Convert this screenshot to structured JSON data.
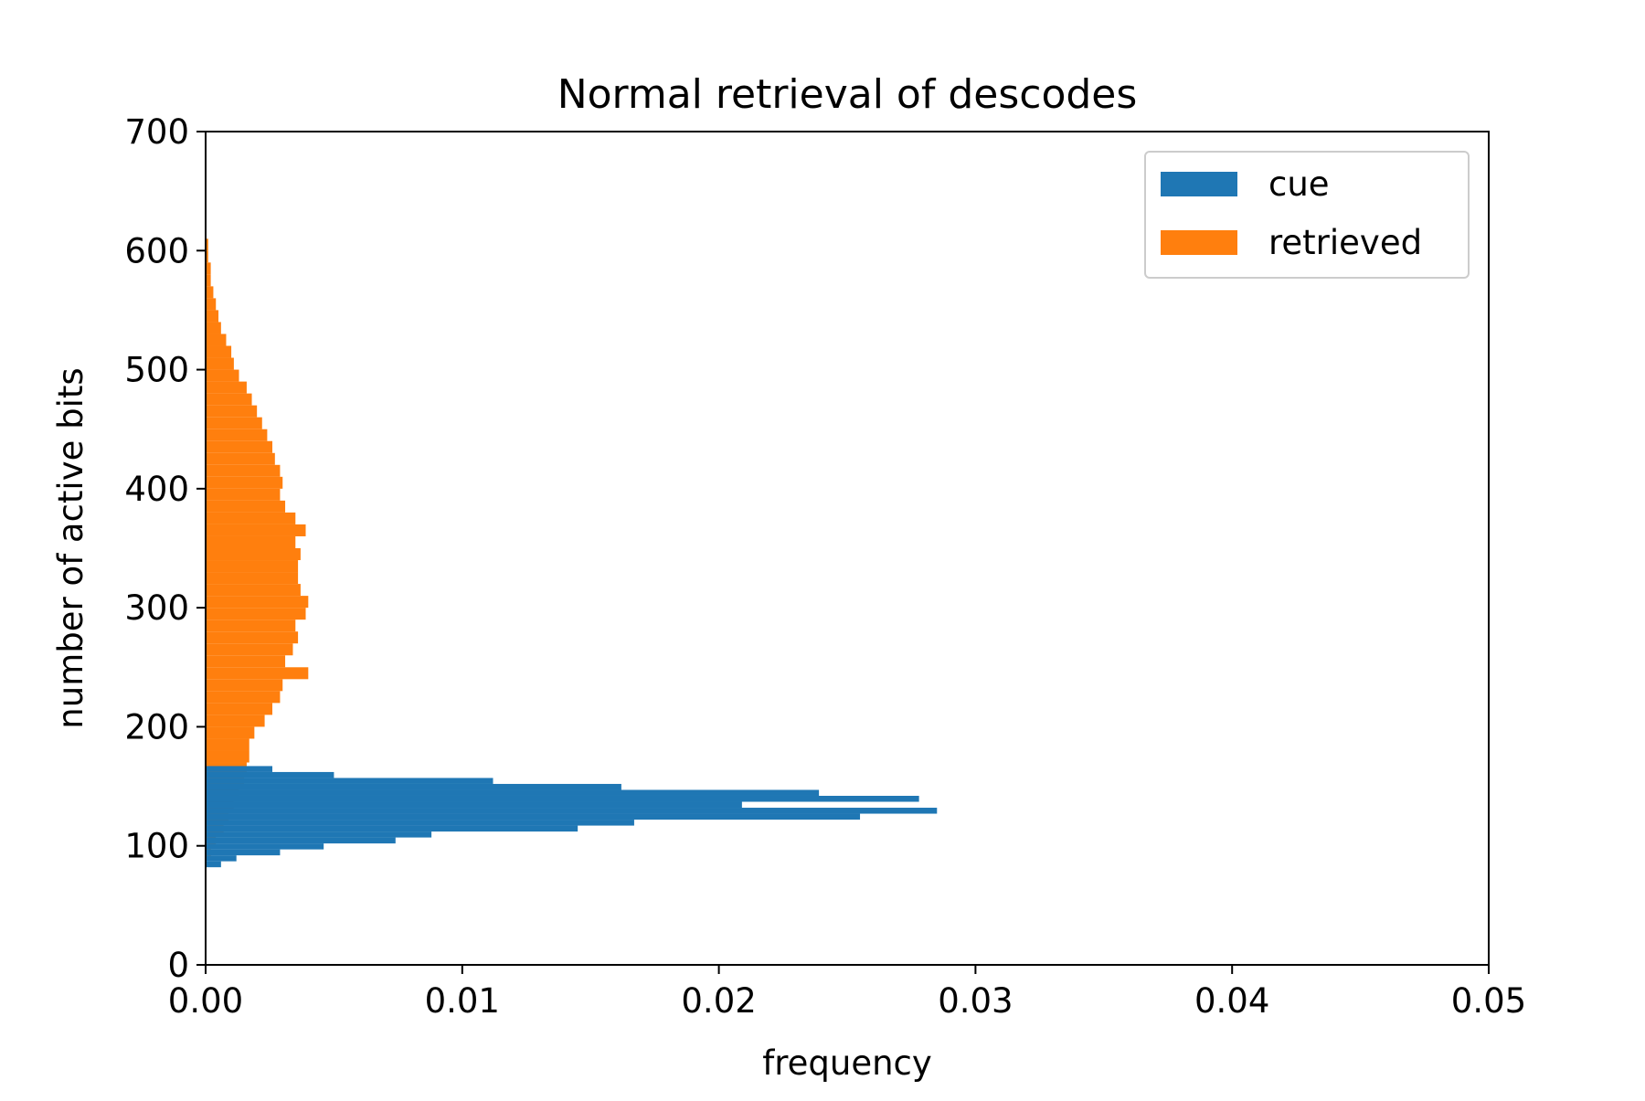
{
  "chart_data": {
    "type": "histogram",
    "orientation": "horizontal",
    "title": "Normal retrieval of descodes",
    "xlabel": "frequency",
    "ylabel": "number of active bits",
    "xlim": [
      0,
      0.05
    ],
    "ylim": [
      0,
      700
    ],
    "xticks": [
      0,
      0.01,
      0.02,
      0.03,
      0.04,
      0.05
    ],
    "xtick_labels": [
      "0.00",
      "0.01",
      "0.02",
      "0.03",
      "0.04",
      "0.05"
    ],
    "yticks": [
      0,
      100,
      200,
      300,
      400,
      500,
      600,
      700
    ],
    "ytick_labels": [
      "0",
      "100",
      "200",
      "300",
      "400",
      "500",
      "600",
      "700"
    ],
    "grid": false,
    "legend_position": "top-right",
    "series": [
      {
        "name": "cue",
        "color": "#1f77b4",
        "bin_width": 5,
        "bins": [
          [
            82,
            0.0006
          ],
          [
            87,
            0.0012
          ],
          [
            92,
            0.0029
          ],
          [
            97,
            0.0046
          ],
          [
            102,
            0.0074
          ],
          [
            107,
            0.0088
          ],
          [
            112,
            0.0145
          ],
          [
            117,
            0.0167
          ],
          [
            122,
            0.0255
          ],
          [
            127,
            0.0285
          ],
          [
            132,
            0.0209
          ],
          [
            137,
            0.0278
          ],
          [
            142,
            0.0239
          ],
          [
            147,
            0.0162
          ],
          [
            152,
            0.0112
          ],
          [
            157,
            0.005
          ],
          [
            162,
            0.0026
          ]
        ]
      },
      {
        "name": "retrieved",
        "color": "#ff7f0e",
        "bin_width": 10,
        "bins": [
          [
            90,
            0.0002
          ],
          [
            100,
            0.0004
          ],
          [
            110,
            0.0007
          ],
          [
            120,
            0.0009
          ],
          [
            130,
            0.0011
          ],
          [
            140,
            0.0013
          ],
          [
            150,
            0.0015
          ],
          [
            160,
            0.0016
          ],
          [
            170,
            0.0017
          ],
          [
            180,
            0.0017
          ],
          [
            190,
            0.0019
          ],
          [
            200,
            0.0023
          ],
          [
            210,
            0.0026
          ],
          [
            220,
            0.0029
          ],
          [
            230,
            0.003
          ],
          [
            240,
            0.004
          ],
          [
            250,
            0.0031
          ],
          [
            260,
            0.0034
          ],
          [
            270,
            0.0036
          ],
          [
            280,
            0.0035
          ],
          [
            290,
            0.0039
          ],
          [
            300,
            0.004
          ],
          [
            310,
            0.0037
          ],
          [
            320,
            0.0036
          ],
          [
            330,
            0.0036
          ],
          [
            340,
            0.0037
          ],
          [
            350,
            0.0035
          ],
          [
            360,
            0.0039
          ],
          [
            370,
            0.0035
          ],
          [
            380,
            0.0031
          ],
          [
            390,
            0.0029
          ],
          [
            400,
            0.003
          ],
          [
            410,
            0.0029
          ],
          [
            420,
            0.0027
          ],
          [
            430,
            0.0026
          ],
          [
            440,
            0.0024
          ],
          [
            450,
            0.0022
          ],
          [
            460,
            0.002
          ],
          [
            470,
            0.0018
          ],
          [
            480,
            0.0016
          ],
          [
            490,
            0.0013
          ],
          [
            500,
            0.0011
          ],
          [
            510,
            0.001
          ],
          [
            520,
            0.0008
          ],
          [
            530,
            0.0006
          ],
          [
            540,
            0.0005
          ],
          [
            550,
            0.0004
          ],
          [
            560,
            0.0003
          ],
          [
            570,
            0.0002
          ],
          [
            580,
            0.0002
          ],
          [
            590,
            0.0001
          ],
          [
            600,
            0.0001
          ]
        ]
      }
    ]
  }
}
